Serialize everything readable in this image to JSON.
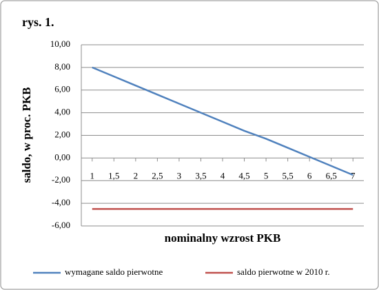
{
  "chart_data": {
    "type": "line",
    "title": "rys. 1.",
    "x_label": "nominalny wzrost PKB",
    "y_label": "saldo, w proc. PKB",
    "x": [
      1,
      1.5,
      2,
      2.5,
      3,
      3.5,
      4,
      4.5,
      5,
      5.5,
      6,
      6.5,
      7
    ],
    "series": [
      {
        "name": "wymagane saldo pierwotne",
        "color": "#4f81bd",
        "values": [
          8.0,
          7.2,
          6.4,
          5.6,
          4.8,
          4.0,
          3.2,
          2.4,
          1.7,
          0.9,
          0.1,
          -0.7,
          -1.5
        ]
      },
      {
        "name": "saldo pierwotne w 2010 r.",
        "color": "#c0504d",
        "values": [
          -4.5,
          -4.5,
          -4.5,
          -4.5,
          -4.5,
          -4.5,
          -4.5,
          -4.5,
          -4.5,
          -4.5,
          -4.5,
          -4.5,
          -4.5
        ]
      }
    ],
    "xlim": [
      0.75,
      7.25
    ],
    "xticks": [
      1,
      {
        "value": 1.5,
        "label": "1,5"
      },
      2,
      {
        "value": 2.5,
        "label": "2,5"
      },
      3,
      {
        "value": 3.5,
        "label": "3,5"
      },
      4,
      {
        "value": 4.5,
        "label": "4,5"
      },
      5,
      {
        "value": 5.5,
        "label": "5,5"
      },
      6,
      {
        "value": 6.5,
        "label": "6,5"
      },
      7
    ],
    "ylim": [
      -6,
      10
    ],
    "yticks": [
      {
        "value": -6,
        "label": "-6,00"
      },
      {
        "value": -4,
        "label": "-4,00"
      },
      {
        "value": -2,
        "label": "-2,00"
      },
      {
        "value": 0,
        "label": "0,00"
      },
      {
        "value": 2,
        "label": "2,00"
      },
      {
        "value": 4,
        "label": "4,00"
      },
      {
        "value": 6,
        "label": "6,00"
      },
      {
        "value": 8,
        "label": "8,00"
      },
      {
        "value": 10,
        "label": "10,00"
      }
    ],
    "grid": true,
    "legend": "bottom"
  }
}
